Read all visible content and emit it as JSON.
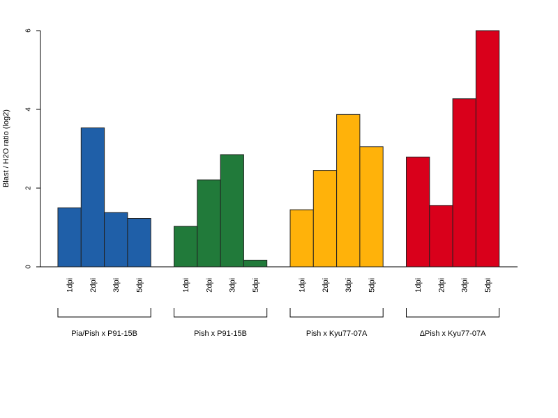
{
  "chart_data": {
    "type": "bar",
    "title": "",
    "xlabel": "",
    "ylabel": "Blast / H2O ratio (log2)",
    "ylim": [
      0,
      6
    ],
    "yticks": [
      "0",
      "2",
      "4",
      "6"
    ],
    "grid": false,
    "legend": "none",
    "groups": [
      {
        "name": "Pia/Pish x P91-15B",
        "color": "#1f5fa8",
        "categories": [
          "1dpi",
          "2dpi",
          "3dpi",
          "5dpi"
        ],
        "values": [
          1.5,
          3.53,
          1.38,
          1.23
        ]
      },
      {
        "name": "Pish x P91-15B",
        "color": "#217a3a",
        "categories": [
          "1dpi",
          "2dpi",
          "3dpi",
          "5dpi"
        ],
        "values": [
          1.03,
          2.21,
          2.85,
          0.17
        ]
      },
      {
        "name": "Pish x Kyu77-07A",
        "color": "#ffb20a",
        "categories": [
          "1dpi",
          "2dpi",
          "3dpi",
          "5dpi"
        ],
        "values": [
          1.45,
          2.45,
          3.87,
          3.05
        ]
      },
      {
        "name": "ΔPish x Kyu77-07A",
        "color": "#d9001b",
        "categories": [
          "1dpi",
          "2dpi",
          "3dpi",
          "5dpi"
        ],
        "values": [
          2.79,
          1.56,
          4.27,
          6.0
        ]
      }
    ]
  }
}
